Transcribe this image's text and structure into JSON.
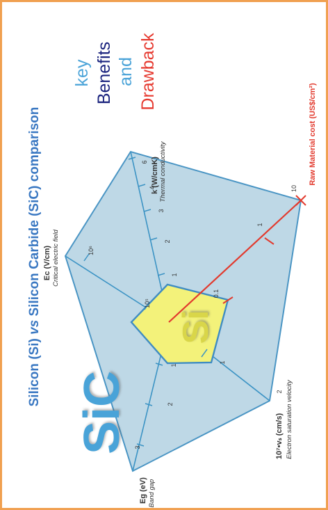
{
  "title": "Silicon (Si) vs Silicon Carbide (SiC) comparison",
  "title_parts": {
    "before": "Silicon (Si) ",
    "italic": "vs",
    "after": " Silicon Carbide (SiC) comparison"
  },
  "side_labels": {
    "key": "key",
    "benefits": "Benefits",
    "and": "and",
    "drawback": "Drawback"
  },
  "material_labels": {
    "sic": "SiC",
    "si": "Si"
  },
  "colors": {
    "title": "#3a78c2",
    "sic_fill": "#bed8e6",
    "sic_stroke": "#4a95c4",
    "si_fill": "#f3f27a",
    "si_stroke": "#3f8cc2",
    "axis": "#3b93c4",
    "cost_axis": "#e23a2e",
    "key": "#4aa3d8",
    "benefits": "#1a237e",
    "drawback": "#e63a30",
    "border": "#f0a050"
  },
  "chart_data": {
    "type": "radar",
    "axes": [
      {
        "id": "ec",
        "label": "Ec (V/cm)",
        "sublabel": "Critical electric field",
        "ticks": [
          "10⁵",
          "10⁶"
        ]
      },
      {
        "id": "k",
        "label": "k (W/cmK)",
        "sublabel": "Thermal conductivity",
        "ticks": [
          "1",
          "2",
          "3",
          "4",
          "6"
        ]
      },
      {
        "id": "cost",
        "label": "Raw Material cost (US$/cm²)",
        "sublabel": "",
        "ticks": [
          "0.1",
          "1",
          "10"
        ]
      },
      {
        "id": "vs",
        "label": "10⁷•vₛ (cm/s)",
        "sublabel": "Electron saturation velocity",
        "ticks": [
          "1",
          "2"
        ]
      },
      {
        "id": "eg",
        "label": "Eg (eV)",
        "sublabel": "Band gap",
        "ticks": [
          "1",
          "2",
          "3"
        ]
      }
    ],
    "series": [
      {
        "name": "SiC",
        "values": {
          "ec": 2000000,
          "k": 5,
          "cost": 10,
          "vs": 2,
          "eg": 3.2
        }
      },
      {
        "name": "Si",
        "values": {
          "ec": 300000,
          "k": 1.5,
          "cost": 0.1,
          "vs": 1,
          "eg": 1.1
        }
      }
    ]
  }
}
